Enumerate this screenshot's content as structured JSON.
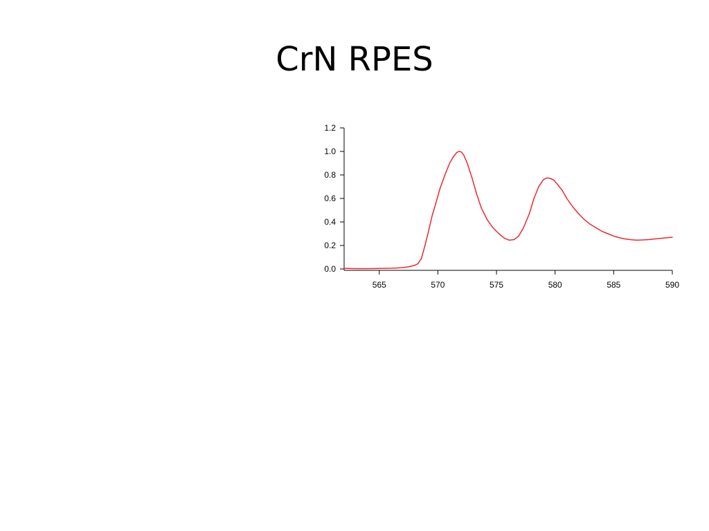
{
  "slide": {
    "title": "CrN RPES"
  },
  "chart_data": {
    "type": "line",
    "title": "",
    "xlabel": "",
    "ylabel": "",
    "xlim": [
      562,
      590
    ],
    "ylim": [
      0,
      1.2
    ],
    "x_ticks": [
      565,
      570,
      575,
      580,
      585,
      590
    ],
    "x_tick_labels": [
      "565",
      "570",
      "575",
      "580",
      "585",
      "590"
    ],
    "y_ticks": [
      0,
      0.2,
      0.4,
      0.6,
      0.8,
      1.0,
      1.2
    ],
    "y_tick_labels": [
      "0.0",
      "0.2",
      "0.4",
      "0.6",
      "0.8",
      "1.0",
      "1.2"
    ],
    "grid": false,
    "legend": "none",
    "series": [
      {
        "color": "#e8292e",
        "x": [
          562,
          563,
          564,
          565,
          566,
          566.5,
          567,
          567.5,
          568,
          568.3,
          568.6,
          568.9,
          569.2,
          569.5,
          569.8,
          570.2,
          570.6,
          571,
          571.3,
          571.6,
          571.8,
          572,
          572.2,
          572.5,
          572.9,
          573.3,
          573.7,
          574.2,
          574.7,
          575.2,
          575.7,
          576.1,
          576.5,
          576.9,
          577.3,
          577.8,
          578.2,
          578.6,
          579,
          579.3,
          579.6,
          579.9,
          580.2,
          580.6,
          581,
          581.5,
          582,
          582.5,
          583,
          583.5,
          584,
          584.5,
          585,
          585.5,
          586,
          586.5,
          587,
          587.5,
          588,
          588.5,
          589,
          589.5,
          590
        ],
        "y": [
          0.005,
          0.003,
          0.003,
          0.004,
          0.006,
          0.008,
          0.012,
          0.018,
          0.03,
          0.045,
          0.09,
          0.2,
          0.32,
          0.45,
          0.55,
          0.69,
          0.8,
          0.9,
          0.95,
          0.99,
          1.0,
          0.995,
          0.97,
          0.9,
          0.78,
          0.64,
          0.52,
          0.42,
          0.35,
          0.3,
          0.26,
          0.245,
          0.25,
          0.28,
          0.35,
          0.47,
          0.6,
          0.7,
          0.76,
          0.775,
          0.77,
          0.755,
          0.72,
          0.67,
          0.6,
          0.53,
          0.47,
          0.42,
          0.38,
          0.35,
          0.32,
          0.3,
          0.28,
          0.265,
          0.255,
          0.248,
          0.245,
          0.247,
          0.25,
          0.255,
          0.26,
          0.265,
          0.27
        ]
      }
    ]
  }
}
